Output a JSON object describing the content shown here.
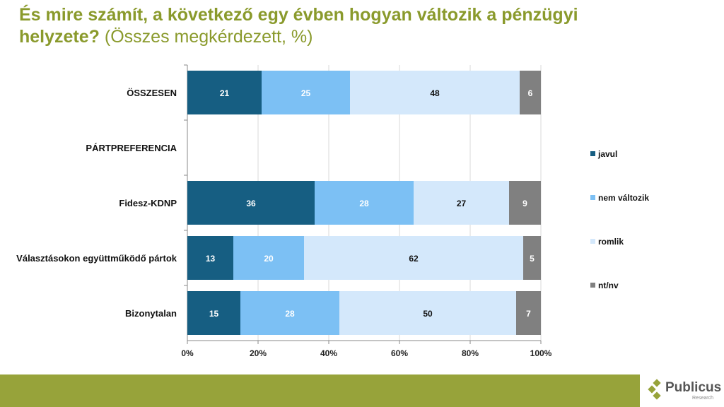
{
  "title": {
    "main": "És mire számít, a következő egy évben hogyan változik a pénzügyi helyzete?",
    "sub": "(Összes megkérdezett, %)"
  },
  "logo": {
    "name": "Publicus",
    "tagline": "Research"
  },
  "chart_data": {
    "type": "bar",
    "stacked": true,
    "orientation": "horizontal",
    "categories": [
      "ÖSSZESEN",
      "PÁRTPREFERENCIA",
      "Fidesz-KDNP",
      "Választásokon együttműködő pártok",
      "Bizonytalan"
    ],
    "series": [
      {
        "name": "javul",
        "color": "#165e82",
        "values": [
          21,
          null,
          36,
          13,
          15
        ]
      },
      {
        "name": "nem változik",
        "color": "#7cc0f4",
        "values": [
          25,
          null,
          28,
          20,
          28
        ]
      },
      {
        "name": "romlik",
        "color": "#d4e8fb",
        "values": [
          48,
          null,
          27,
          62,
          50
        ]
      },
      {
        "name": "nt/nv",
        "color": "#808080",
        "values": [
          6,
          null,
          9,
          5,
          7
        ]
      }
    ],
    "xlim": [
      0,
      100
    ],
    "xticks": [
      "0%",
      "20%",
      "40%",
      "60%",
      "80%",
      "100%"
    ],
    "grid": true,
    "legend": "right"
  }
}
